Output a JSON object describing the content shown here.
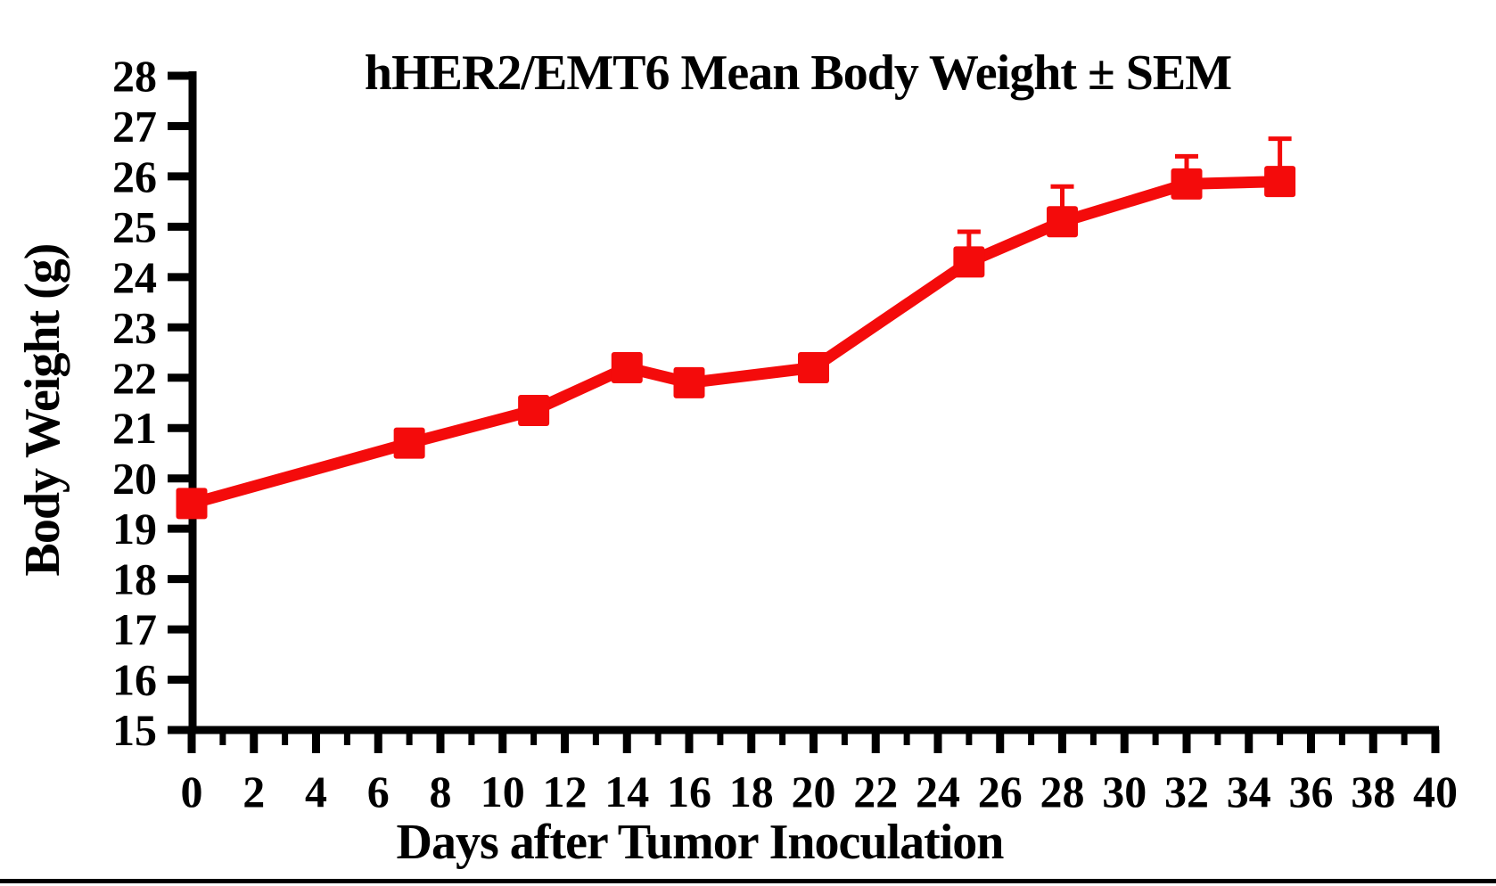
{
  "chart_data": {
    "type": "line",
    "title": "hHER2/EMT6 Mean Body Weight ± SEM",
    "xlabel": "Days after Tumor Inoculation",
    "ylabel": "Body Weight (g)",
    "x": [
      0,
      7,
      11,
      14,
      16,
      20,
      25,
      28,
      32,
      35
    ],
    "y": [
      19.5,
      20.7,
      21.35,
      22.2,
      21.9,
      22.2,
      24.3,
      25.1,
      25.85,
      25.9
    ],
    "sem_upper": [
      null,
      null,
      null,
      null,
      null,
      null,
      0.6,
      0.7,
      0.55,
      0.85
    ],
    "error_bars": "upper-only",
    "xlim": [
      0,
      40
    ],
    "ylim": [
      15,
      28
    ],
    "xtick_step": 2,
    "xminor_step": 1,
    "ytick_step": 1,
    "marker": "square",
    "grid": false,
    "legend": null,
    "series_color": "#f40b0b",
    "axis_color": "#000000"
  }
}
